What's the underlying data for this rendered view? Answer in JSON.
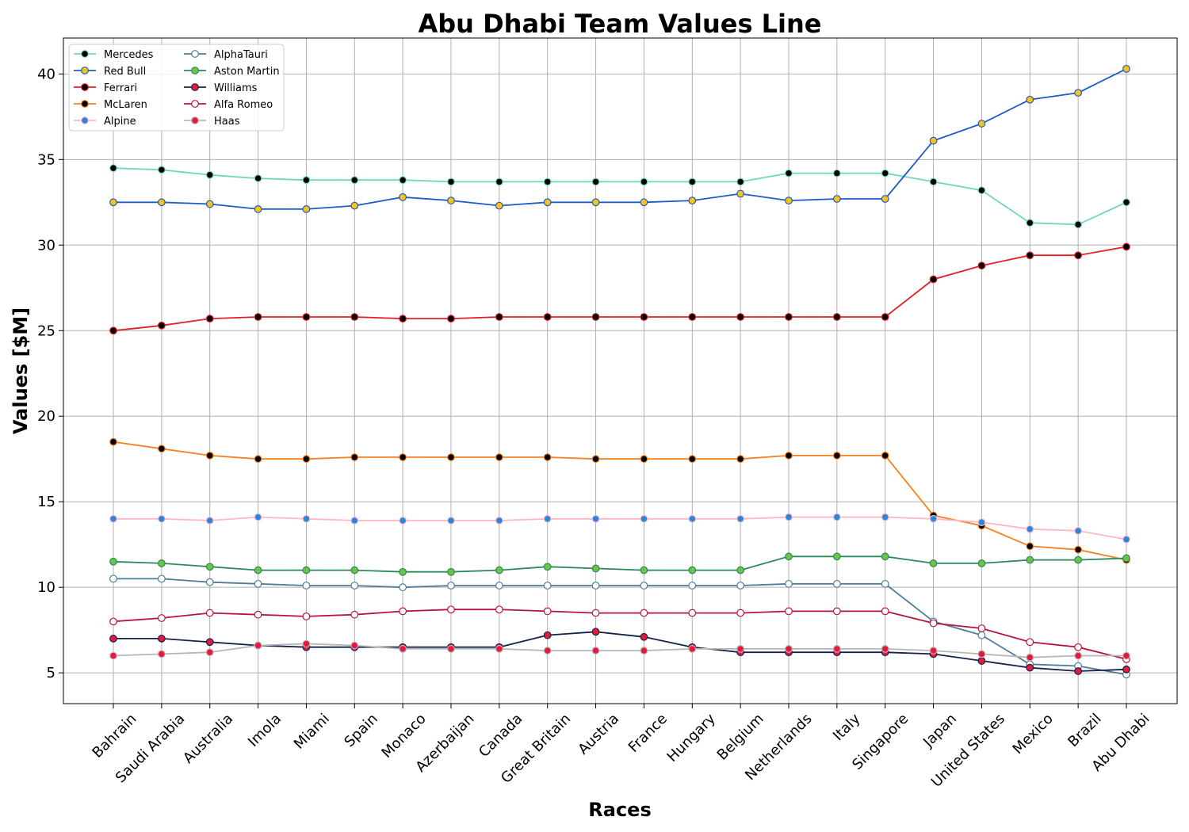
{
  "chart_data": {
    "type": "line",
    "title": "Abu Dhabi Team Values Line",
    "xlabel": "Races",
    "ylabel": "Values [$M]",
    "ylim": [
      3.2,
      42.1
    ],
    "yticks": [
      5,
      10,
      15,
      20,
      25,
      30,
      35,
      40
    ],
    "grid": true,
    "legend_position": "top-left",
    "categories": [
      "Bahrain",
      "Saudi Arabia",
      "Australia",
      "Imola",
      "Miami",
      "Spain",
      "Monaco",
      "Azerbaijan",
      "Canada",
      "Great Britain",
      "Austria",
      "France",
      "Hungary",
      "Belgium",
      "Netherlands",
      "Italy",
      "Singapore",
      "Japan",
      "United States",
      "Mexico",
      "Brazil",
      "Abu Dhabi"
    ],
    "series": [
      {
        "name": "Mercedes",
        "line_color": "#6fd6be",
        "marker_color": "#000000",
        "values": [
          34.5,
          34.4,
          34.1,
          33.9,
          33.8,
          33.8,
          33.8,
          33.7,
          33.7,
          33.7,
          33.7,
          33.7,
          33.7,
          33.7,
          34.2,
          34.2,
          34.2,
          33.7,
          33.2,
          31.3,
          31.2,
          32.5
        ]
      },
      {
        "name": "Red Bull",
        "line_color": "#1f5bc6",
        "marker_color": "#f5c518",
        "values": [
          32.5,
          32.5,
          32.4,
          32.1,
          32.1,
          32.3,
          32.8,
          32.6,
          32.3,
          32.5,
          32.5,
          32.5,
          32.6,
          33.0,
          32.6,
          32.7,
          32.7,
          36.1,
          37.1,
          38.5,
          38.9,
          40.3
        ]
      },
      {
        "name": "Ferrari",
        "line_color": "#e21f26",
        "marker_color": "#000000",
        "values": [
          25.0,
          25.3,
          25.7,
          25.8,
          25.8,
          25.8,
          25.7,
          25.7,
          25.8,
          25.8,
          25.8,
          25.8,
          25.8,
          25.8,
          25.8,
          25.8,
          25.8,
          28.0,
          28.8,
          29.4,
          29.4,
          29.9
        ]
      },
      {
        "name": "McLaren",
        "line_color": "#f58020",
        "marker_color": "#000000",
        "values": [
          18.5,
          18.1,
          17.7,
          17.5,
          17.5,
          17.6,
          17.6,
          17.6,
          17.6,
          17.6,
          17.5,
          17.5,
          17.5,
          17.5,
          17.7,
          17.7,
          17.7,
          14.2,
          13.6,
          12.4,
          12.2,
          11.6
        ]
      },
      {
        "name": "Alpine",
        "line_color": "#ffb6c6",
        "marker_color": "#2a86d8",
        "values": [
          14.0,
          14.0,
          13.9,
          14.1,
          14.0,
          13.9,
          13.9,
          13.9,
          13.9,
          14.0,
          14.0,
          14.0,
          14.0,
          14.0,
          14.1,
          14.1,
          14.1,
          14.0,
          13.8,
          13.4,
          13.3,
          12.8
        ]
      },
      {
        "name": "AlphaTauri",
        "line_color": "#4e7c9b",
        "marker_color": "#ffffff",
        "values": [
          10.5,
          10.5,
          10.3,
          10.2,
          10.1,
          10.1,
          10.0,
          10.1,
          10.1,
          10.1,
          10.1,
          10.1,
          10.1,
          10.1,
          10.2,
          10.2,
          10.2,
          8.0,
          7.2,
          5.5,
          5.4,
          4.9
        ]
      },
      {
        "name": "Aston Martin",
        "line_color": "#2d8a58",
        "marker_color": "#6cc24a",
        "values": [
          11.5,
          11.4,
          11.2,
          11.0,
          11.0,
          11.0,
          10.9,
          10.9,
          11.0,
          11.2,
          11.1,
          11.0,
          11.0,
          11.0,
          11.8,
          11.8,
          11.8,
          11.4,
          11.4,
          11.6,
          11.6,
          11.7
        ]
      },
      {
        "name": "Williams",
        "line_color": "#13224a",
        "marker_color": "#e8173f",
        "values": [
          7.0,
          7.0,
          6.8,
          6.6,
          6.5,
          6.5,
          6.5,
          6.5,
          6.5,
          7.2,
          7.4,
          7.1,
          6.5,
          6.2,
          6.2,
          6.2,
          6.2,
          6.1,
          5.7,
          5.3,
          5.1,
          5.2
        ]
      },
      {
        "name": "Alfa Romeo",
        "line_color": "#b5163b",
        "marker_color": "#ffffff",
        "values": [
          8.0,
          8.2,
          8.5,
          8.4,
          8.3,
          8.4,
          8.6,
          8.7,
          8.7,
          8.6,
          8.5,
          8.5,
          8.5,
          8.5,
          8.6,
          8.6,
          8.6,
          7.9,
          7.6,
          6.8,
          6.5,
          5.8
        ]
      },
      {
        "name": "Haas",
        "line_color": "#b7b7b7",
        "marker_color": "#e8173f",
        "values": [
          6.0,
          6.1,
          6.2,
          6.6,
          6.7,
          6.6,
          6.4,
          6.4,
          6.4,
          6.3,
          6.3,
          6.3,
          6.4,
          6.4,
          6.4,
          6.4,
          6.4,
          6.3,
          6.1,
          5.9,
          6.0,
          6.0
        ]
      }
    ]
  }
}
